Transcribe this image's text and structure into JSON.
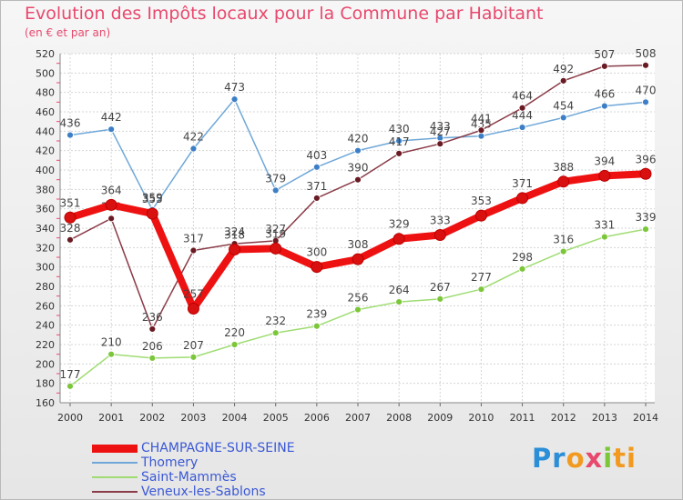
{
  "chart_data": {
    "type": "line",
    "title": "Evolution des Impôts locaux pour la Commune par Habitant",
    "subtitle": "(en € et par an)",
    "xlabel": "",
    "ylabel": "",
    "ylim": [
      160,
      520
    ],
    "yticks": [
      160,
      180,
      200,
      220,
      240,
      260,
      280,
      300,
      320,
      340,
      360,
      380,
      400,
      420,
      440,
      460,
      480,
      500,
      520
    ],
    "categories": [
      "2000",
      "2001",
      "2002",
      "2003",
      "2004",
      "2005",
      "2006",
      "2007",
      "2008",
      "2009",
      "2010",
      "2011",
      "2012",
      "2013",
      "2014"
    ],
    "grid": true,
    "legend_position": "bottom-left",
    "series": [
      {
        "name": "Thomery",
        "color": "#6fa8d8",
        "marker": "#3d7fc6",
        "width": 1.5,
        "values": [
          436,
          442,
          359,
          422,
          473,
          379,
          403,
          420,
          430,
          433,
          435,
          444,
          454,
          466,
          470
        ],
        "labels": [
          "436",
          "442",
          "359",
          "422",
          "473",
          "379",
          "403",
          "420",
          "430",
          "433",
          "435",
          "444",
          "454",
          "466",
          "470"
        ]
      },
      {
        "name": "Saint-Mammès",
        "color": "#9fdc72",
        "marker": "#7cc63a",
        "width": 1.5,
        "values": [
          177,
          210,
          206,
          207,
          220,
          232,
          239,
          256,
          264,
          267,
          277,
          298,
          316,
          331,
          339
        ],
        "labels": [
          "177",
          "210",
          "206",
          "207",
          "220",
          "232",
          "239",
          "256",
          "264",
          "267",
          "277",
          "298",
          "316",
          "331",
          "339"
        ]
      },
      {
        "name": "Veneux-les-Sablons",
        "color": "#8a3c48",
        "marker": "#6a1a22",
        "width": 1.5,
        "values": [
          328,
          350,
          236,
          317,
          324,
          327,
          371,
          390,
          417,
          427,
          441,
          464,
          492,
          507,
          508
        ],
        "labels": [
          "328",
          "350",
          "236",
          "317",
          "324",
          "327",
          "371",
          "390",
          "417",
          "427",
          "441",
          "464",
          "492",
          "507",
          "508"
        ]
      },
      {
        "name": "CHAMPAGNE-SUR-SEINE",
        "color": "#ee1111",
        "marker": "#d91010",
        "width": 8,
        "values": [
          351,
          364,
          355,
          257,
          318,
          319,
          300,
          308,
          329,
          333,
          353,
          371,
          388,
          394,
          396
        ],
        "labels": [
          "351",
          "364",
          "355",
          "257",
          "318",
          "319",
          "300",
          "308",
          "329",
          "333",
          "353",
          "371",
          "388",
          "394",
          "396"
        ]
      }
    ]
  },
  "legend": {
    "items": [
      {
        "name": "CHAMPAGNE-SUR-SEINE",
        "color": "#ee1111",
        "thickness": "thick"
      },
      {
        "name": "Thomery",
        "color": "#6fa8d8",
        "thickness": "thin"
      },
      {
        "name": "Saint-Mammès",
        "color": "#9fdc72",
        "thickness": "thin"
      },
      {
        "name": "Veneux-les-Sablons",
        "color": "#8a3c48",
        "thickness": "thin"
      }
    ]
  },
  "logo": {
    "p1": "Pr",
    "p2": "o",
    "p3": "x",
    "p4": "i",
    "p5": "ti"
  }
}
